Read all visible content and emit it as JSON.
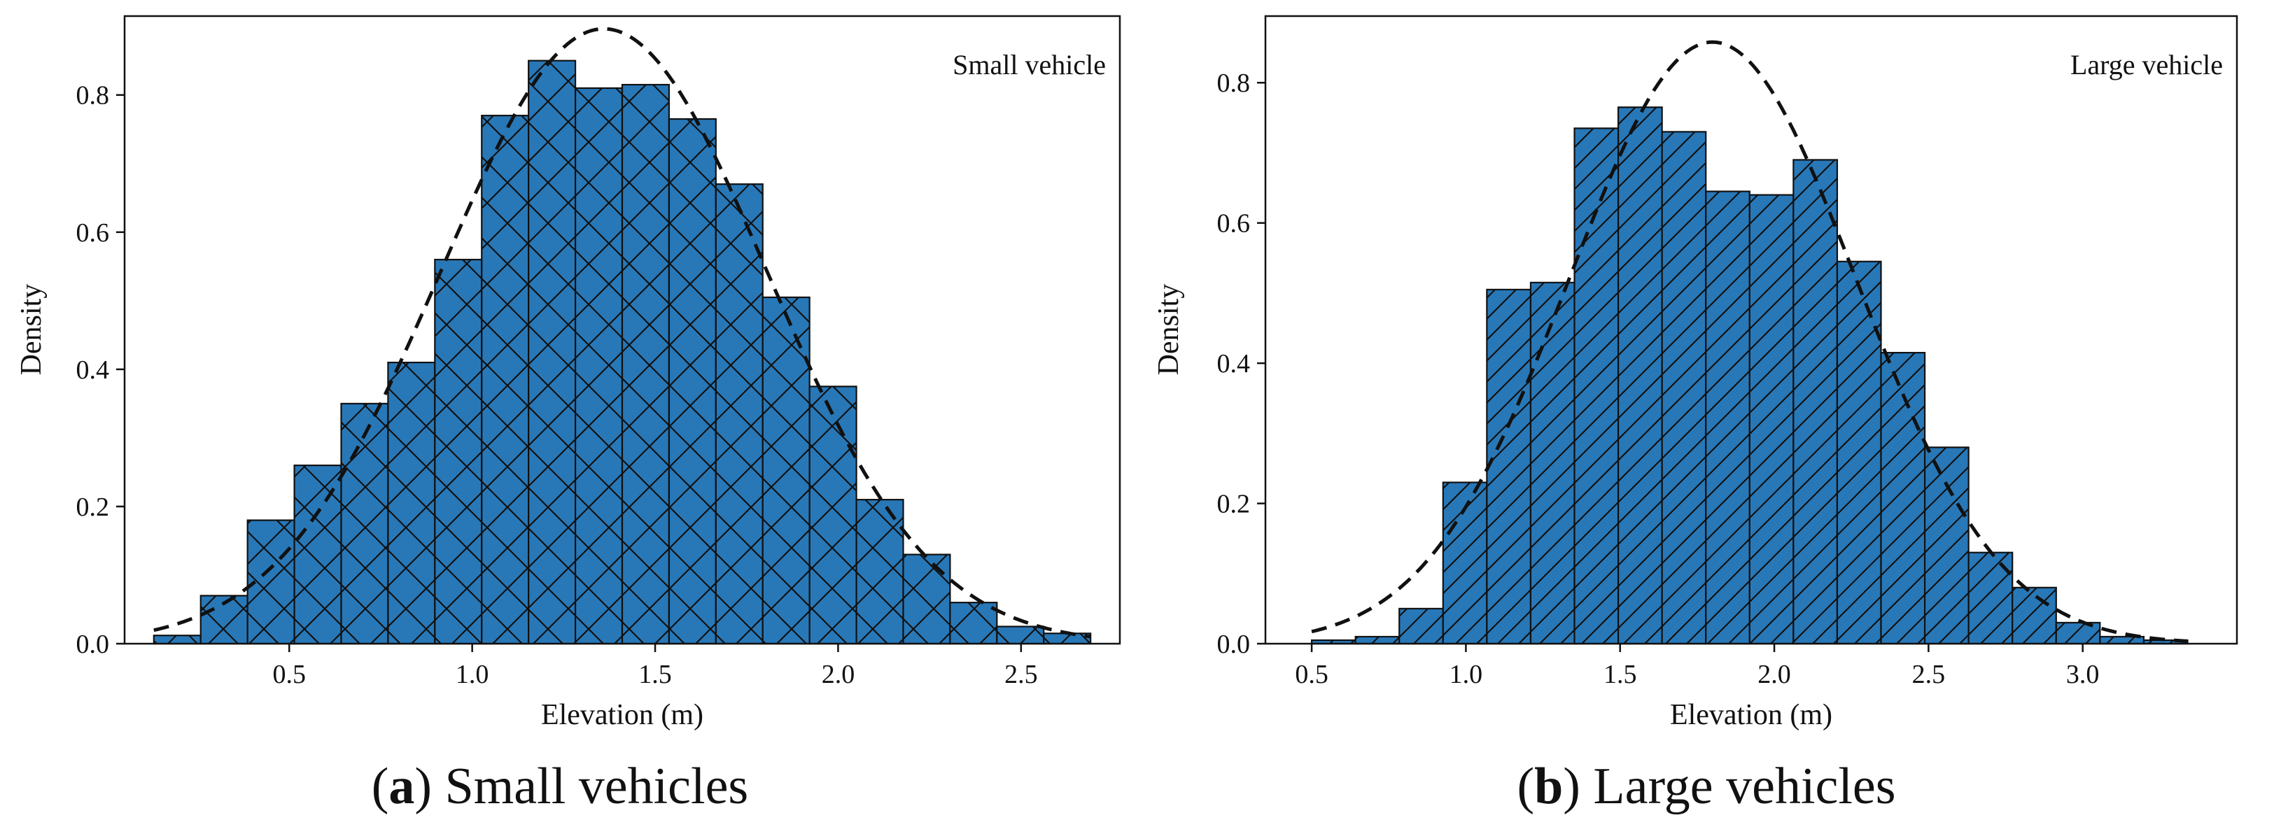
{
  "chart_data": [
    {
      "type": "bar",
      "id": "small",
      "title": "Small vehicle",
      "xlabel": "Elevation (m)",
      "ylabel": "Density",
      "xlim": [
        0.05,
        2.77
      ],
      "ylim": [
        0,
        0.915
      ],
      "grid": false,
      "xticks": [
        0.5,
        1.0,
        1.5,
        2.0,
        2.5
      ],
      "xtick_labels": [
        "0.5",
        "1.0",
        "1.5",
        "2.0",
        "2.5"
      ],
      "yticks": [
        0.0,
        0.2,
        0.4,
        0.6,
        0.8
      ],
      "ytick_labels": [
        "0.0",
        "0.2",
        "0.4",
        "0.6",
        "0.8"
      ],
      "bar_color": "#2878b8",
      "edge_color": "#111111",
      "hatch": "x",
      "bins_start": 0.13,
      "bins_end": 2.69,
      "values": [
        0.012,
        0.07,
        0.18,
        0.26,
        0.35,
        0.41,
        0.56,
        0.77,
        0.85,
        0.81,
        0.815,
        0.765,
        0.67,
        0.505,
        0.375,
        0.21,
        0.13,
        0.06,
        0.025,
        0.015
      ],
      "normal_fit": {
        "mean": 1.36,
        "std": 0.445,
        "style": "dashed"
      },
      "caption_label": "a",
      "caption_text": "Small vehicles"
    },
    {
      "type": "bar",
      "id": "large",
      "title": "Large vehicle",
      "xlabel": "Elevation (m)",
      "ylabel": "Density",
      "xlim": [
        0.35,
        3.5
      ],
      "ylim": [
        0,
        0.895
      ],
      "grid": false,
      "xticks": [
        0.5,
        1.0,
        1.5,
        2.0,
        2.5,
        3.0
      ],
      "xtick_labels": [
        "0.5",
        "1.0",
        "1.5",
        "2.0",
        "2.5",
        "3.0"
      ],
      "yticks": [
        0.0,
        0.2,
        0.4,
        0.6,
        0.8
      ],
      "ytick_labels": [
        "0.0",
        "0.2",
        "0.4",
        "0.6",
        "0.8"
      ],
      "bar_color": "#2878b8",
      "edge_color": "#111111",
      "hatch": "/",
      "bins_start": 0.5,
      "bins_end": 3.34,
      "values": [
        0.005,
        0.01,
        0.05,
        0.23,
        0.505,
        0.515,
        0.735,
        0.765,
        0.73,
        0.645,
        0.64,
        0.69,
        0.545,
        0.415,
        0.28,
        0.13,
        0.08,
        0.03,
        0.01,
        0.005
      ],
      "normal_fit": {
        "mean": 1.8,
        "std": 0.465,
        "style": "dashed"
      },
      "caption_label": "b",
      "caption_text": "Large vehicles"
    }
  ]
}
